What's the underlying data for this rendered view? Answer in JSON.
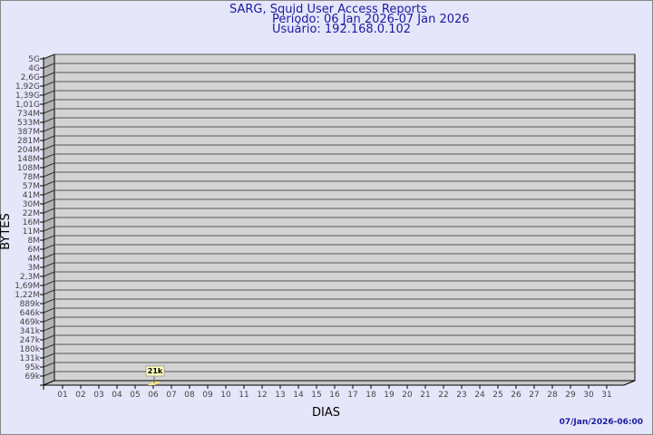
{
  "title": "SARG, Squid User Access Reports",
  "period": "Período: 06 Jan 2026-07 Jan 2026",
  "user": "Usuário: 192.168.0.102",
  "timestamp": "07/Jan/2026-06:00",
  "chart_data": {
    "type": "bar",
    "xlabel": "DIAS",
    "ylabel": "BYTES",
    "categories": [
      "01",
      "02",
      "03",
      "04",
      "05",
      "06",
      "07",
      "08",
      "09",
      "10",
      "11",
      "12",
      "13",
      "14",
      "15",
      "16",
      "17",
      "18",
      "19",
      "20",
      "21",
      "22",
      "23",
      "24",
      "25",
      "26",
      "27",
      "28",
      "29",
      "30",
      "31"
    ],
    "y_tick_labels": [
      "5G",
      "4G",
      "2,6G",
      "1,92G",
      "1,39G",
      "1,01G",
      "734M",
      "533M",
      "387M",
      "281M",
      "204M",
      "148M",
      "108M",
      "78M",
      "57M",
      "41M",
      "30M",
      "22M",
      "16M",
      "11M",
      "8M",
      "6M",
      "4M",
      "3M",
      "2,3M",
      "1,69M",
      "1,22M",
      "889k",
      "646k",
      "469k",
      "341k",
      "247k",
      "180k",
      "131k",
      "95k",
      "69k"
    ],
    "series": [
      {
        "values": [
          null,
          null,
          null,
          null,
          null,
          21000,
          null,
          null,
          null,
          null,
          null,
          null,
          null,
          null,
          null,
          null,
          null,
          null,
          null,
          null,
          null,
          null,
          null,
          null,
          null,
          null,
          null,
          null,
          null,
          null,
          null
        ]
      }
    ],
    "data_labels": {
      "06": "21k"
    },
    "grid": true,
    "colors": {
      "plot": "#d3d3d3",
      "bar": "#ffe680",
      "label_bg": "#ffffc0",
      "text": "#1a1aa0"
    }
  }
}
